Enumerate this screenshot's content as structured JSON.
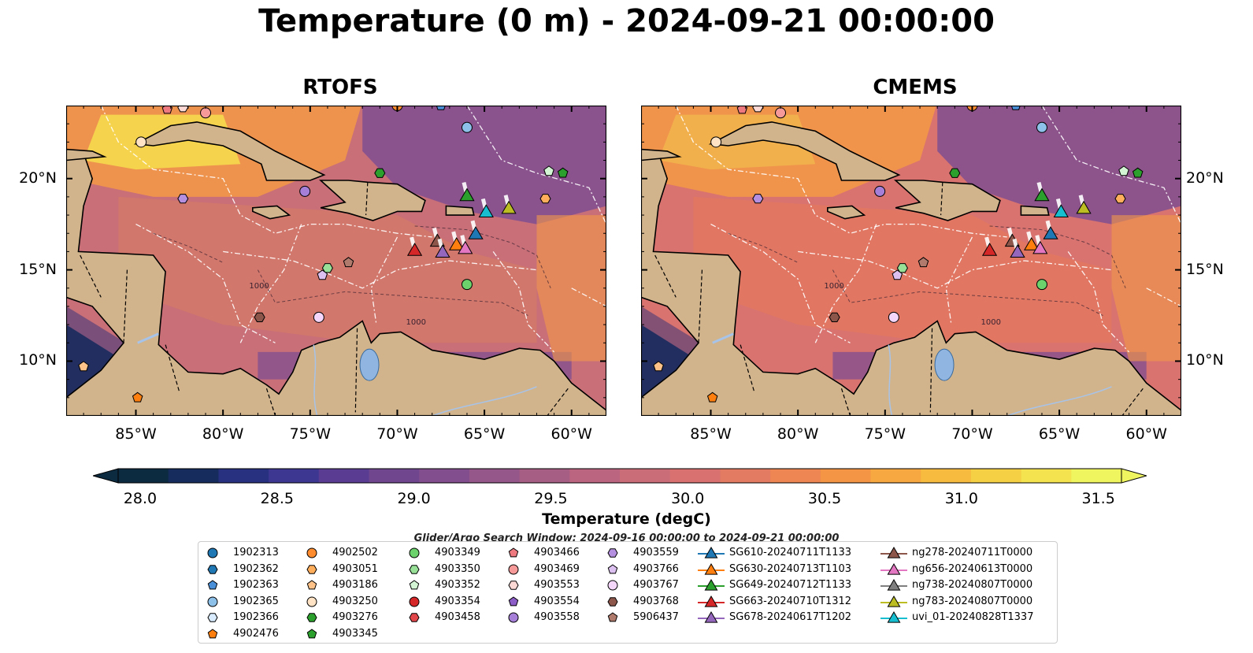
{
  "title": "Temperature (0 m) - 2024-09-21 00:00:00",
  "colors": {
    "land": "#d2b48c",
    "lake": "#8fb5e0",
    "river": "#a7c3e8",
    "warm": "#f49a47",
    "hot": "#f6e44c",
    "mid": "#b56a85",
    "cool": "#7a4c93",
    "cold": "#2b2f7a",
    "coldest": "#0f2942"
  },
  "chart_data": [
    {
      "type": "heatmap",
      "title": "RTOFS",
      "variable": "Temperature (0 m)",
      "xlim": [
        -89,
        -58
      ],
      "ylim": [
        7,
        24
      ],
      "x_ticks": [
        "85°W",
        "80°W",
        "75°W",
        "70°W",
        "65°W",
        "60°W"
      ],
      "y_ticks": [
        "10°N",
        "15°N",
        "20°N"
      ],
      "contour_labels": [
        "1000",
        "1000"
      ]
    },
    {
      "type": "heatmap",
      "title": "CMEMS",
      "variable": "Temperature (0 m)",
      "xlim": [
        -89,
        -58
      ],
      "ylim": [
        7,
        24
      ],
      "x_ticks": [
        "85°W",
        "80°W",
        "75°W",
        "70°W",
        "65°W",
        "60°W"
      ],
      "y_ticks": [
        "10°N",
        "15°N",
        "20°N"
      ],
      "contour_labels": [
        "1000",
        "1000"
      ]
    }
  ],
  "colorbar": {
    "label": "Temperature (degC)",
    "min": 28.0,
    "max": 31.5,
    "ticks": [
      "28.0",
      "28.5",
      "29.0",
      "29.5",
      "30.0",
      "30.5",
      "31.0",
      "31.5"
    ],
    "colors": [
      "#0c2a40",
      "#152c5c",
      "#27317f",
      "#3e3791",
      "#5a3d93",
      "#70478f",
      "#834e8d",
      "#955689",
      "#a75e85",
      "#bb6580",
      "#cb6c79",
      "#d87170",
      "#e37b62",
      "#ed8652",
      "#f49545",
      "#f7a840",
      "#f7bb3f",
      "#f5cf44",
      "#f5e24f",
      "#eef55e"
    ],
    "extend": "both"
  },
  "search_window": "Glider/Argo Search Window: 2024-09-16 00:00:00 to 2024-09-21 00:00:00",
  "legend": {
    "columns": [
      [
        {
          "label": "1902313",
          "marker": "circle",
          "color": "#1f77b4"
        },
        {
          "label": "1902362",
          "marker": "hexagon",
          "color": "#1f77b4"
        },
        {
          "label": "1902363",
          "marker": "pentagon",
          "color": "#4a90d9"
        },
        {
          "label": "1902365",
          "marker": "circle",
          "color": "#8ec1ea"
        },
        {
          "label": "1902366",
          "marker": "hexagon",
          "color": "#d9ecff"
        },
        {
          "label": "4902476",
          "marker": "pentagon",
          "color": "#ff7f0e"
        }
      ],
      [
        {
          "label": "4902502",
          "marker": "circle",
          "color": "#ff8c2e"
        },
        {
          "label": "4903051",
          "marker": "hexagon",
          "color": "#ffae5c"
        },
        {
          "label": "4903186",
          "marker": "pentagon",
          "color": "#ffc389"
        },
        {
          "label": "4903250",
          "marker": "circle",
          "color": "#ffe3c4"
        },
        {
          "label": "4903276",
          "marker": "hexagon",
          "color": "#2ca02c"
        },
        {
          "label": "4903345",
          "marker": "pentagon",
          "color": "#2ca02c"
        }
      ],
      [
        {
          "label": "4903349",
          "marker": "circle",
          "color": "#6cd36c"
        },
        {
          "label": "4903350",
          "marker": "hexagon",
          "color": "#98e098"
        },
        {
          "label": "4903352",
          "marker": "pentagon",
          "color": "#d4f5d4"
        },
        {
          "label": "4903354",
          "marker": "circle",
          "color": "#d62728"
        },
        {
          "label": "4903458",
          "marker": "hexagon",
          "color": "#e0464a"
        }
      ],
      [
        {
          "label": "4903466",
          "marker": "pentagon",
          "color": "#ee7a80"
        },
        {
          "label": "4903469",
          "marker": "circle",
          "color": "#f59a98"
        },
        {
          "label": "4903553",
          "marker": "hexagon",
          "color": "#fdd9d6"
        },
        {
          "label": "4903554",
          "marker": "pentagon",
          "color": "#8c5cc7"
        },
        {
          "label": "4903558",
          "marker": "circle",
          "color": "#a680d8"
        }
      ],
      [
        {
          "label": "4903559",
          "marker": "hexagon",
          "color": "#b690e0"
        },
        {
          "label": "4903766",
          "marker": "pentagon",
          "color": "#dcc0f0"
        },
        {
          "label": "4903767",
          "marker": "circle",
          "color": "#f3d6fa"
        },
        {
          "label": "4903768",
          "marker": "hexagon",
          "color": "#8c564b"
        },
        {
          "label": "5906437",
          "marker": "pentagon",
          "color": "#b07b6d"
        }
      ],
      [
        {
          "label": "SG610-20240711T1133",
          "marker": "triangle",
          "color": "#1f77b4"
        },
        {
          "label": "SG630-20240713T1103",
          "marker": "triangle",
          "color": "#ff7f0e"
        },
        {
          "label": "SG649-20240712T1133",
          "marker": "triangle",
          "color": "#2ca02c"
        },
        {
          "label": "SG663-20240710T1312",
          "marker": "triangle",
          "color": "#d62728"
        },
        {
          "label": "SG678-20240617T1202",
          "marker": "triangle",
          "color": "#9467bd"
        }
      ],
      [
        {
          "label": "ng278-20240711T0000",
          "marker": "triangle",
          "color": "#8c564b"
        },
        {
          "label": "ng656-20240613T0000",
          "marker": "triangle",
          "color": "#e377c2"
        },
        {
          "label": "ng738-20240807T0000",
          "marker": "triangle",
          "color": "#7f7f7f"
        },
        {
          "label": "ng783-20240807T0000",
          "marker": "triangle",
          "color": "#bcbd22"
        },
        {
          "label": "uvi_01-20240828T1337",
          "marker": "triangle",
          "color": "#17becf"
        }
      ]
    ]
  },
  "markers": [
    {
      "label": "1902363",
      "lon": -67.5,
      "lat": 24.0
    },
    {
      "label": "1902365",
      "lon": -66.0,
      "lat": 22.8
    },
    {
      "label": "4902502",
      "lon": -70.0,
      "lat": 24.0
    },
    {
      "label": "4903345",
      "lon": -60.5,
      "lat": 20.3
    },
    {
      "label": "4903352",
      "lon": -61.3,
      "lat": 20.4
    },
    {
      "label": "4903276",
      "lon": -71.0,
      "lat": 20.3
    },
    {
      "label": "4903558",
      "lon": -75.3,
      "lat": 19.3
    },
    {
      "label": "4903559",
      "lon": -82.3,
      "lat": 18.9
    },
    {
      "label": "4903250",
      "lon": -84.7,
      "lat": 22.0
    },
    {
      "label": "4903469",
      "lon": -81.0,
      "lat": 23.6
    },
    {
      "label": "4903553",
      "lon": -82.3,
      "lat": 23.9
    },
    {
      "label": "4903466",
      "lon": -83.2,
      "lat": 23.8
    },
    {
      "label": "4903051",
      "lon": -61.5,
      "lat": 18.9
    },
    {
      "label": "4903350",
      "lon": -74.0,
      "lat": 15.1
    },
    {
      "label": "4903766",
      "lon": -74.3,
      "lat": 14.7
    },
    {
      "label": "5906437",
      "lon": -72.8,
      "lat": 15.4
    },
    {
      "label": "4903349",
      "lon": -66.0,
      "lat": 14.2
    },
    {
      "label": "4903768",
      "lon": -77.9,
      "lat": 12.4
    },
    {
      "label": "4903767",
      "lon": -74.5,
      "lat": 12.4
    },
    {
      "label": "4903186",
      "lon": -88.0,
      "lat": 9.7
    },
    {
      "label": "4902476",
      "lon": -84.9,
      "lat": 8.0
    }
  ],
  "gliders": [
    {
      "label": "SG649-20240712T1133",
      "lon": -66.0,
      "lat": 19.1
    },
    {
      "label": "uvi_01-20240828T1337",
      "lon": -64.9,
      "lat": 18.2
    },
    {
      "label": "ng783-20240807T0000",
      "lon": -63.6,
      "lat": 18.4
    },
    {
      "label": "SG610-20240711T1133",
      "lon": -65.5,
      "lat": 17.0
    },
    {
      "label": "ng278-20240711T0000",
      "lon": -67.7,
      "lat": 16.6
    },
    {
      "label": "SG630-20240713T1103",
      "lon": -66.6,
      "lat": 16.4
    },
    {
      "label": "ng656-20240613T0000",
      "lon": -66.1,
      "lat": 16.2
    },
    {
      "label": "SG678-20240617T1202",
      "lon": -67.4,
      "lat": 16.0
    },
    {
      "label": "SG663-20240710T1312",
      "lon": -69.0,
      "lat": 16.1
    }
  ]
}
